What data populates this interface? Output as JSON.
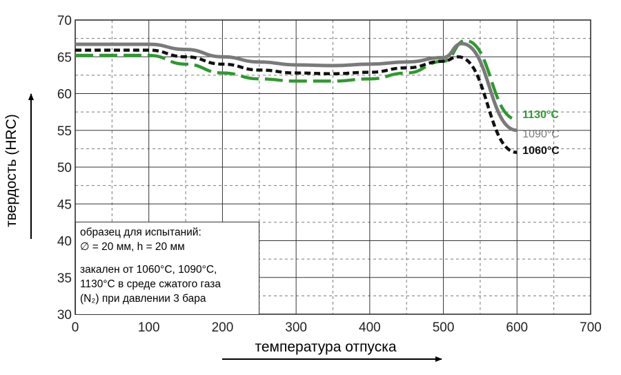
{
  "chart_data": {
    "type": "line",
    "xlabel": "температура отпуска",
    "ylabel": "твердость (HRC)",
    "xlim": [
      0,
      700
    ],
    "ylim": [
      30,
      70
    ],
    "xticks": [
      0,
      100,
      200,
      300,
      400,
      500,
      600,
      700
    ],
    "yticks": [
      30,
      35,
      40,
      45,
      50,
      55,
      60,
      65,
      70
    ],
    "grid": "major and minor (dashed minor)",
    "series": [
      {
        "name": "1130°C",
        "color": "#2e9a2e",
        "style": "long-dash",
        "x": [
          0,
          100,
          150,
          200,
          250,
          300,
          350,
          400,
          450,
          500,
          530,
          600
        ],
        "y": [
          65.2,
          65.2,
          64.0,
          62.8,
          62.0,
          61.7,
          61.7,
          62.0,
          62.8,
          64.4,
          67.2,
          56.5
        ]
      },
      {
        "name": "1090°C",
        "color": "#7a7a7a",
        "style": "solid",
        "x": [
          0,
          100,
          150,
          200,
          250,
          300,
          350,
          400,
          450,
          500,
          525,
          600
        ],
        "y": [
          66.7,
          66.7,
          66.0,
          65.0,
          64.3,
          63.9,
          63.8,
          64.0,
          64.3,
          64.9,
          66.8,
          55.0
        ]
      },
      {
        "name": "1060°C",
        "color": "#111111",
        "style": "short-dash",
        "x": [
          0,
          100,
          150,
          200,
          250,
          300,
          350,
          400,
          450,
          500,
          520,
          600
        ],
        "y": [
          65.9,
          65.9,
          65.0,
          64.0,
          63.2,
          62.8,
          62.7,
          62.9,
          63.5,
          64.4,
          65.0,
          52.0
        ]
      }
    ],
    "annotation": {
      "lines": [
        "образец для испытаний:",
        "∅ = 20 мм, h = 20 мм",
        "закален от 1060°C, 1090°C,",
        "1130°C в среде сжатого газа",
        "(N₂) при давлении 3 бара"
      ]
    }
  }
}
